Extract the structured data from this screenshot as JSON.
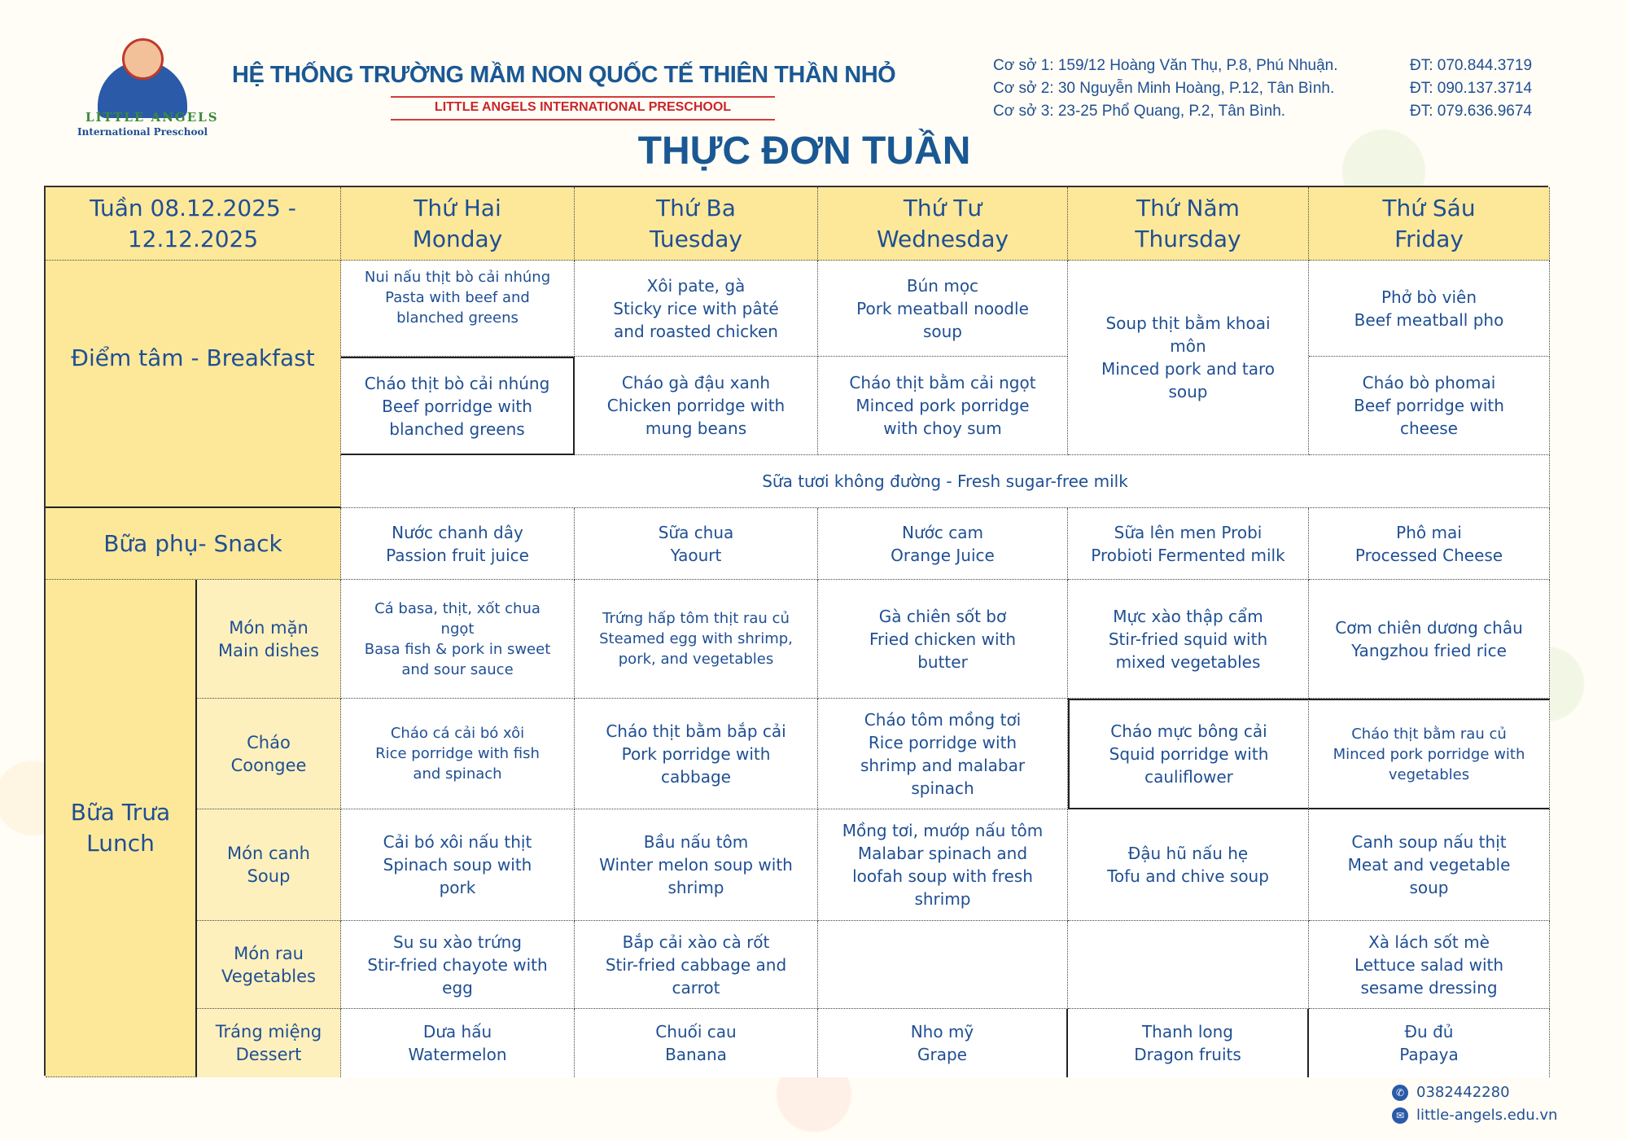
{
  "header": {
    "logo_text": "LITTLE ANGELS",
    "logo_subtext": "International Preschool",
    "school_name": "HỆ THỐNG TRƯỜNG MẦM NON QUỐC TẾ THIÊN THẦN NHỎ",
    "school_name_en": "LITTLE ANGELS INTERNATIONAL PRESCHOOL",
    "title": "THỰC ĐƠN TUẦN",
    "branches": [
      {
        "address": "Cơ sở 1: 159/12 Hoàng Văn Thụ, P.8, Phú Nhuận.",
        "phone": "ĐT: 070.844.3719"
      },
      {
        "address": "Cơ sở 2: 30 Nguyễn Minh Hoàng, P.12, Tân Bình.",
        "phone": "ĐT: 090.137.3714"
      },
      {
        "address": "Cơ sở 3: 23-25 Phổ Quang, P.2, Tân Bình.",
        "phone": "ĐT: 079.636.9674"
      }
    ]
  },
  "menu": {
    "week": "Tuần 08.12.2025 -\n12.12.2025",
    "days": [
      "Thứ Hai\nMonday",
      "Thứ Ba\nTuesday",
      "Thứ Tư\nWednesday",
      "Thứ Năm\nThursday",
      "Thứ Sáu\nFriday"
    ],
    "breakfast_label": "Điểm tâm - Breakfast",
    "breakfast_1": [
      "Nui nấu thịt bò cải nhúng\nPasta with beef and\nblanched greens",
      "Xôi pate, gà\nSticky rice with pâté\nand roasted chicken",
      "Bún mọc\nPork meatball noodle\nsoup",
      "Soup thịt bằm khoai\nmôn\nMinced pork and taro\nsoup",
      "Phở bò viên\nBeef meatball pho"
    ],
    "breakfast_2": [
      "Cháo thịt bò cải nhúng\nBeef porridge with\nblanched greens",
      "Cháo gà đậu xanh\nChicken porridge with\nmung beans",
      "Cháo thịt bằm cải ngọt\nMinced pork porridge\nwith choy sum",
      "Cháo bò phomai\nBeef porridge with\ncheese"
    ],
    "milk": "Sữa tươi không đường - Fresh sugar-free milk",
    "snack_label": "Bữa phụ- Snack",
    "snack": [
      "Nước chanh dây\nPassion fruit juice",
      "Sữa chua\nYaourt",
      "Nước cam\nOrange Juice",
      "Sữa lên men Probi\nProbioti Fermented milk",
      "Phô mai\nProcessed Cheese"
    ],
    "lunch_label": "Bữa Trưa\nLunch",
    "lunch": [
      {
        "label": "Món mặn\nMain dishes",
        "items": [
          "Cá basa, thịt, xốt chua\nngọt\nBasa fish & pork in sweet\nand sour sauce",
          "Trứng hấp tôm thịt rau củ\nSteamed egg with shrimp,\npork, and vegetables",
          "Gà chiên sốt bơ\nFried chicken with\nbutter",
          "Mực xào thập cẩm\nStir-fried squid with\nmixed vegetables",
          "Cơm chiên dương châu\nYangzhou fried rice"
        ]
      },
      {
        "label": "Cháo\nCoongee",
        "items": [
          "Cháo cá cải bó xôi\nRice porridge with fish\nand spinach",
          "Cháo thịt bằm bắp cải\nPork porridge with\ncabbage",
          "Cháo tôm mồng tơi\nRice porridge with\nshrimp and malabar\nspinach",
          "Cháo mực bông cải\nSquid porridge with\ncauliflower",
          "Cháo thịt bằm rau củ\nMinced pork porridge with\nvegetables"
        ]
      },
      {
        "label": "Món canh\nSoup",
        "items": [
          "Cải bó xôi nấu thịt\nSpinach soup with\npork",
          "Bầu nấu tôm\nWinter melon soup with\nshrimp",
          "Mồng tơi, mướp nấu tôm\nMalabar spinach and\nloofah soup with fresh\nshrimp",
          "Đậu hũ nấu hẹ\nTofu and chive soup",
          "Canh soup nấu thịt\nMeat and vegetable\nsoup"
        ]
      },
      {
        "label": "Món rau\nVegetables",
        "items": [
          "Su su xào trứng\nStir-fried chayote with\negg",
          "Bắp cải xào cà rốt\nStir-fried cabbage and\ncarrot",
          "",
          "",
          "Xà lách sốt mè\nLettuce salad with\nsesame dressing"
        ]
      },
      {
        "label": "Tráng miệng\nDessert",
        "items": [
          "Dưa hấu\nWatermelon",
          "Chuối cau\nBanana",
          "Nho mỹ\nGrape",
          "Thanh long\nDragon fruits",
          "Đu đủ\nPapaya"
        ]
      }
    ]
  },
  "footer": {
    "phone": "0382442280",
    "website": "little-angels.edu.vn",
    "phone_icon": "phone-icon",
    "email_icon": "mail-icon"
  },
  "colors": {
    "text": "#1f4f93",
    "header_bg": "#fde89a",
    "sublabel_bg": "#fdf0bd",
    "accent_red": "#c8262b"
  }
}
